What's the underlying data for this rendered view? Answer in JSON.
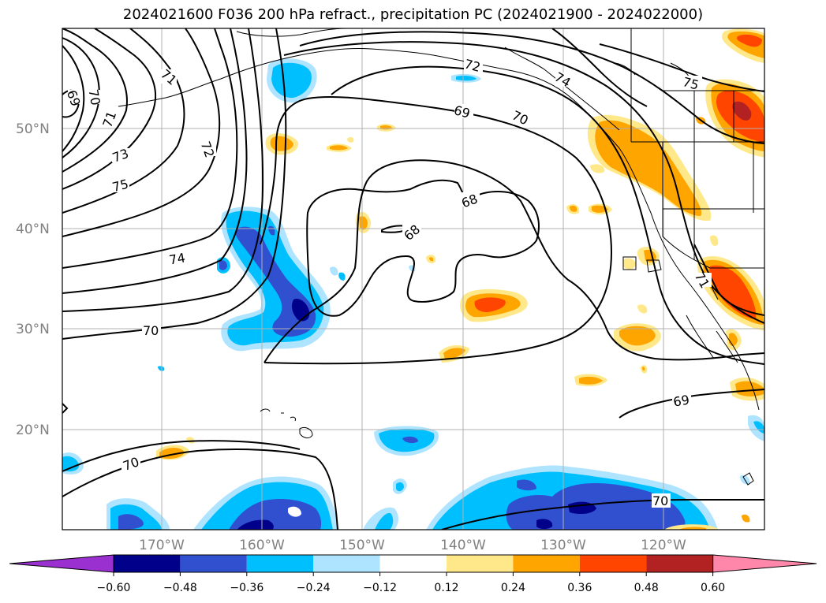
{
  "title": "2024021600 F036 200 hPa refract., precipitation PC (2024021900 - 2024022000)",
  "latitude_labels": [
    "50°N",
    "40°N",
    "30°N",
    "20°N"
  ],
  "longitude_labels": [
    "170°W",
    "160°W",
    "150°W",
    "140°W",
    "130°W",
    "120°W"
  ],
  "contour_labels": [
    "69",
    "70",
    "71",
    "71",
    "72",
    "73",
    "75",
    "74",
    "70",
    "70",
    "72",
    "69",
    "70",
    "68",
    "68",
    "75",
    "71",
    "69",
    "70",
    "74"
  ],
  "colorbar": {
    "ticks": [
      "−0.60",
      "−0.48",
      "−0.36",
      "−0.24",
      "−0.12",
      "0.12",
      "0.24",
      "0.36",
      "0.48",
      "0.60"
    ],
    "colors": [
      "#9b30d0",
      "#00008b",
      "#3050d0",
      "#00bfff",
      "#aee4ff",
      "#ffffff",
      "#ffe88a",
      "#ffa500",
      "#ff4500",
      "#b22222",
      "#ff88aa"
    ]
  },
  "fill_colors": {
    "light_blue": "#aee4ff",
    "blue": "#00bfff",
    "medium_blue": "#3050d0",
    "navy": "#00008b",
    "yellow": "#ffe88a",
    "orange": "#ffa500",
    "red_orange": "#ff4500",
    "dark_red": "#b22222"
  }
}
